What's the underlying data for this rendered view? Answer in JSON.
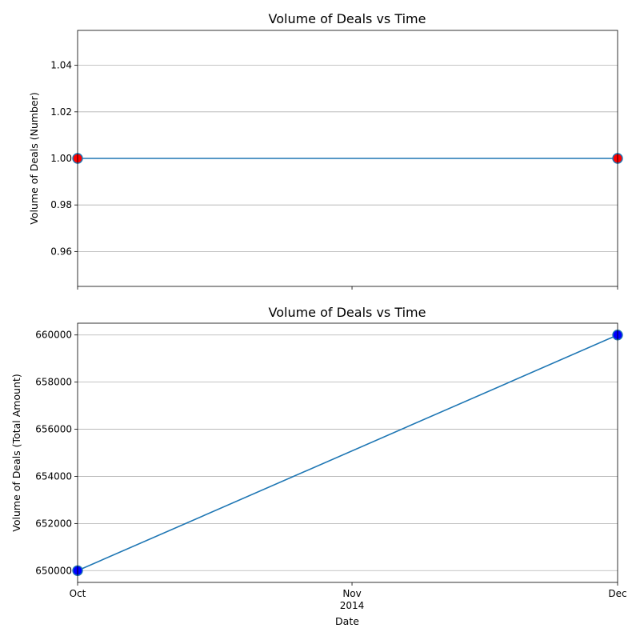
{
  "chart_data": [
    {
      "type": "line",
      "title": "Volume of Deals vs Time",
      "xlabel": "",
      "ylabel": "Volume of Deals (Number)",
      "x": [
        "2014-10-01",
        "2014-12-01"
      ],
      "series": [
        {
          "values": [
            1,
            1
          ]
        }
      ],
      "ylim": [
        0.945,
        1.055
      ],
      "yticks": [
        "0.96",
        "0.98",
        "1.00",
        "1.02",
        "1.04"
      ],
      "xticks": [],
      "grid": "y",
      "line_color": "#1f77b4",
      "marker_color": "#ff0000"
    },
    {
      "type": "line",
      "title": "Volume of Deals vs Time",
      "xlabel": "Date",
      "ylabel": "Volume of Deals (Total Amount)",
      "x": [
        "2014-10-01",
        "2014-12-01"
      ],
      "series": [
        {
          "values": [
            650000,
            660000
          ]
        }
      ],
      "ylim": [
        649500,
        660500
      ],
      "yticks": [
        "650000",
        "652000",
        "654000",
        "656000",
        "658000",
        "660000"
      ],
      "xticks": [
        {
          "date": "2014-10-01",
          "label": "Oct"
        },
        {
          "date": "2014-11-01",
          "label": "Nov",
          "sublabel": "2014"
        },
        {
          "date": "2014-12-01",
          "label": "Dec"
        }
      ],
      "grid": "y",
      "line_color": "#1f77b4",
      "marker_color": "#0000ff"
    }
  ]
}
